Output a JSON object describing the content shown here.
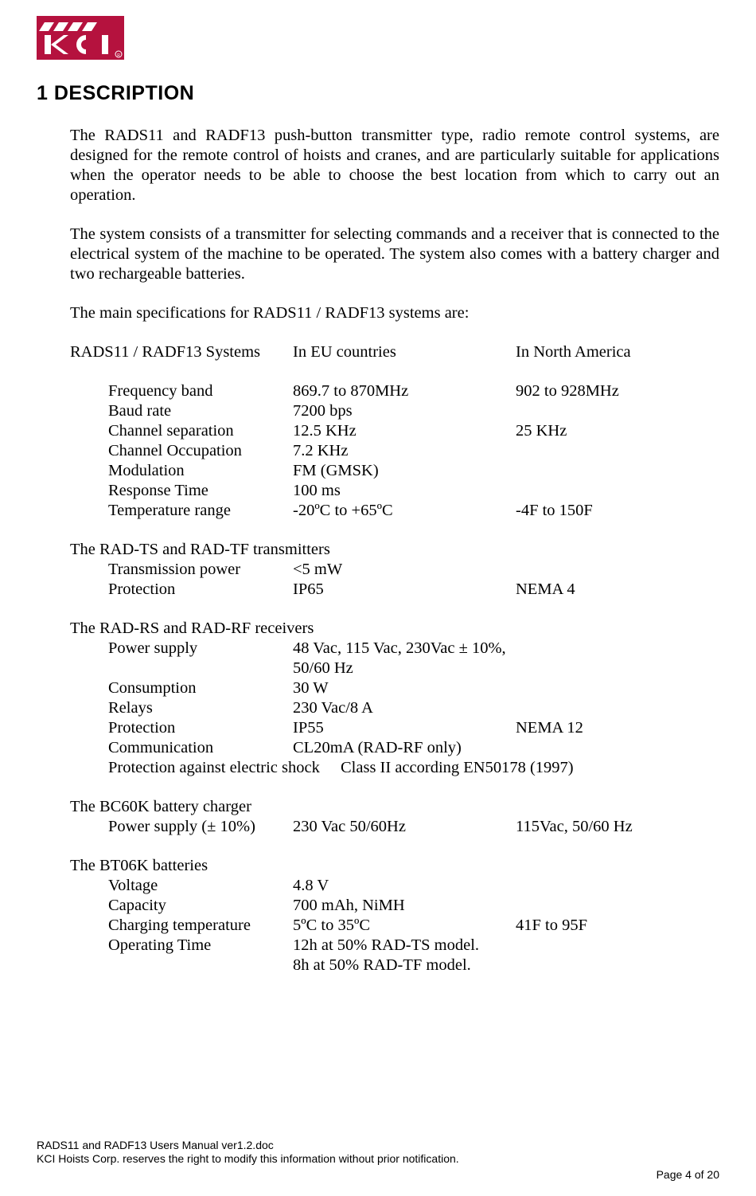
{
  "logo": {
    "bg_color": "#b5123e",
    "text_color": "#ffffff"
  },
  "heading": "1  DESCRIPTION",
  "paragraphs": {
    "p1": "The RADS11 and RADF13 push-button transmitter type, radio remote control systems, are designed for the remote control of hoists and cranes, and are particularly suitable for applications when the operator needs to be able to choose the best location from which to carry out an operation.",
    "p2": "The system consists of a transmitter for selecting commands and a receiver that is connected to the electrical system of the machine to be operated. The system also comes with a battery charger and two rechargeable batteries.",
    "p3": "The main specifications for RADS11 / RADF13 systems are:"
  },
  "header_row": {
    "c1": "RADS11 / RADF13 Systems",
    "c2": "In EU countries",
    "c3": "In North America"
  },
  "specs_main": [
    {
      "c1": "Frequency band",
      "c2": "869.7 to 870MHz",
      "c3": "902 to 928MHz"
    },
    {
      "c1": "Baud rate",
      "c2": "7200 bps",
      "c3": ""
    },
    {
      "c1": "Channel separation",
      "c2": "12.5 KHz",
      "c3": "25 KHz"
    },
    {
      "c1": "Channel Occupation",
      "c2": "7.2 KHz",
      "c3": ""
    },
    {
      "c1": "Modulation",
      "c2": "FM (GMSK)",
      "c3": ""
    },
    {
      "c1": "Response Time",
      "c2": "100 ms",
      "c3": ""
    },
    {
      "c1": "Temperature range",
      "c2": "-20ºC to +65ºC",
      "c3": "-4F to 150F"
    }
  ],
  "tx_heading": "The RAD-TS and RAD-TF transmitters",
  "tx_rows": [
    {
      "c1": "Transmission power",
      "c2": "<5 mW",
      "c3": ""
    },
    {
      "c1": "Protection",
      "c2": "IP65",
      "c3": "NEMA 4"
    }
  ],
  "rx_heading": "The RAD-RS and RAD-RF receivers",
  "rx_rows": [
    {
      "c1": "Power supply",
      "c2": "48 Vac, 115 Vac, 230Vac ± 10%, 50/60 Hz",
      "c3": ""
    },
    {
      "c1": "Consumption",
      "c2": "30 W",
      "c3": ""
    },
    {
      "c1": "Relays",
      "c2": "230 Vac/8 A",
      "c3": ""
    },
    {
      "c1": "Protection",
      "c2": "IP55",
      "c3": "NEMA 12"
    },
    {
      "c1": "Communication",
      "c2": "CL20mA (RAD-RF only)",
      "c3": ""
    }
  ],
  "rx_special": {
    "label": "Protection against electric shock",
    "value": "Class II according EN50178 (1997)"
  },
  "charger_heading": "The BC60K battery charger",
  "charger_rows": [
    {
      "c1": "Power supply  (± 10%)",
      "c2": "230 Vac 50/60Hz",
      "c3": "115Vac, 50/60 Hz"
    }
  ],
  "batt_heading": "The BT06K batteries",
  "batt_rows": [
    {
      "c1": "Voltage",
      "c2": "4.8 V",
      "c3": ""
    },
    {
      "c1": "Capacity",
      "c2": "700 mAh, NiMH",
      "c3": ""
    },
    {
      "c1": "Charging temperature",
      "c2": "5ºC to 35ºC",
      "c3": "41F to 95F"
    },
    {
      "c1": "Operating Time",
      "c2": "12h at 50% RAD-TS model.",
      "c3": ""
    },
    {
      "c1": "",
      "c2": "8h at 50% RAD-TF model.",
      "c3": ""
    }
  ],
  "footer": {
    "line1": "RADS11 and RADF13 Users Manual ver1.2.doc",
    "line2": "KCI Hoists Corp.  reserves the right to modify this information without prior notification.",
    "pager": "Page 4 of 20"
  }
}
